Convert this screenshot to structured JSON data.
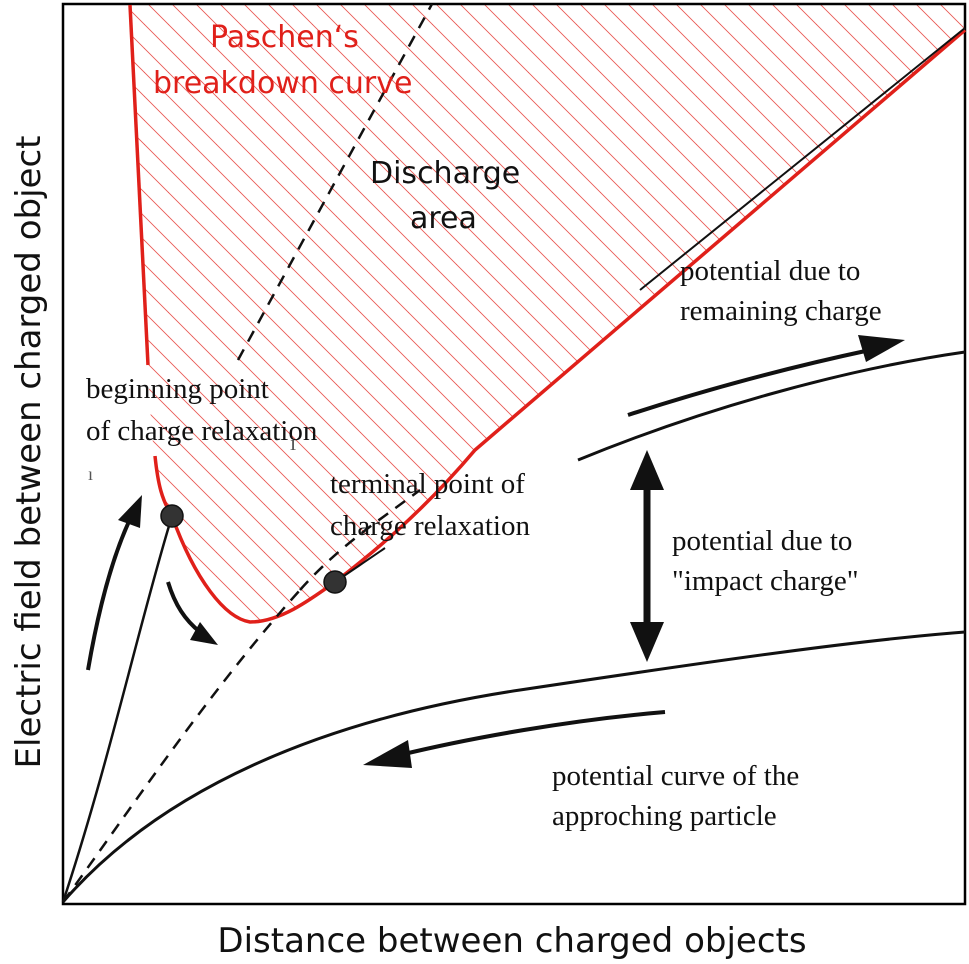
{
  "axes": {
    "xlabel": "Distance between charged objects",
    "ylabel": "Electric field between charged object"
  },
  "labels": {
    "paschen_line1": "Paschen‘s",
    "paschen_line2": "breakdown curve",
    "discharge_line1": "Discharge",
    "discharge_line2": "area",
    "remaining_line1": "potential due to",
    "remaining_line2": "remaining charge",
    "beginning_line1": "beginning point",
    "beginning_line2": "of charge relaxation",
    "terminal_line1": "terminal point of",
    "terminal_line2": "charge relaxation",
    "impact_line1": "potential due to",
    "impact_line2": "\"impact charge\"",
    "approach_line1": "potential curve of the",
    "approach_line2": "approching particle"
  },
  "colors": {
    "paschen": "#e0201a",
    "hatch": "#e0201a",
    "curves": "#111111",
    "points": "#333333",
    "axes": "#000000"
  }
}
